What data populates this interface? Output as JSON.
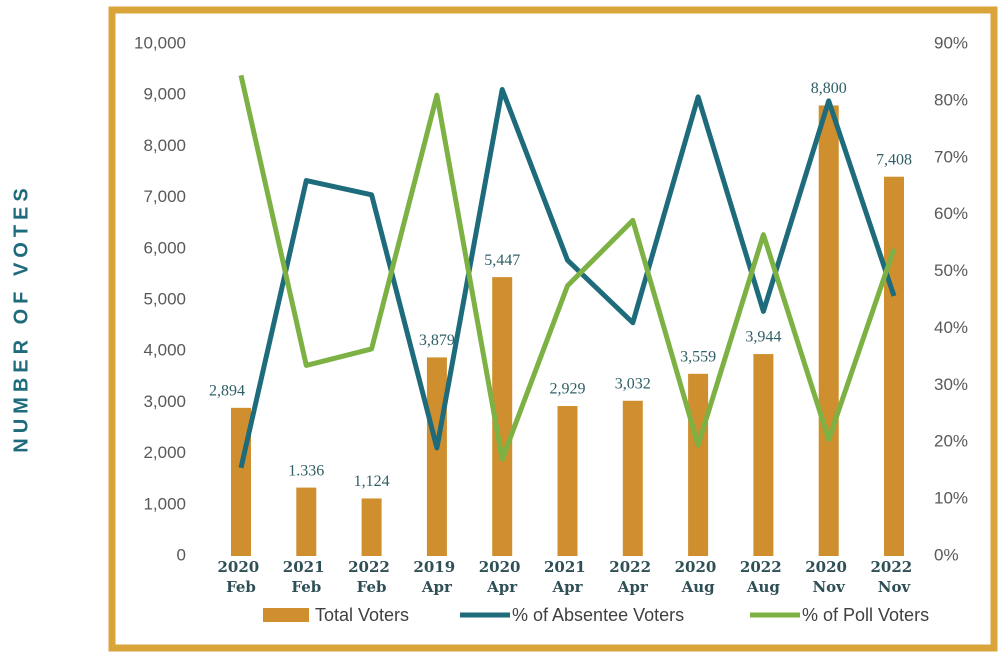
{
  "chart_data": {
    "type": "bar_line",
    "y_axis_label": "NUMBER OF VOTES",
    "categories": [
      "2020 Feb",
      "2021 Feb",
      "2022 Feb",
      "2019 Apr",
      "2020 Apr",
      "2021 Apr",
      "2022 Apr",
      "2020 Aug",
      "2022 Aug",
      "2020 Nov",
      "2022 Nov"
    ],
    "series": [
      {
        "name": "Total Voters",
        "color": "#d08f2f",
        "kind": "bar",
        "values": [
          2894,
          1336,
          1124,
          3879,
          5447,
          2929,
          3032,
          3559,
          3944,
          8800,
          7408
        ],
        "value_labels": [
          "2,894",
          "1.336",
          "1,124",
          "3,879",
          "5,447",
          "2,929",
          "3,032",
          "3,559",
          "3,944",
          "8,800",
          "7,408"
        ]
      },
      {
        "name": "% of Absentee Voters",
        "color": "#1e6b7b",
        "kind": "line",
        "axis": "y2",
        "values": [
          15.5,
          66,
          63.5,
          19,
          82,
          52,
          41,
          80.7,
          43,
          80,
          45.7
        ]
      },
      {
        "name": "% of Poll Voters",
        "color": "#7db143",
        "kind": "line",
        "axis": "y2",
        "values": [
          84.5,
          33.5,
          36.4,
          81,
          17,
          47.5,
          59,
          19.5,
          56.5,
          20.5,
          54
        ]
      }
    ],
    "ylim": [
      0,
      10000
    ],
    "yticks": [
      0,
      {
        "value": 1000,
        "label": "1,000"
      },
      {
        "value": 2000,
        "label": "2,000"
      },
      {
        "value": 3000,
        "label": "3,000"
      },
      {
        "value": 4000,
        "label": "4,000"
      },
      {
        "value": 5000,
        "label": "5,000"
      },
      {
        "value": 6000,
        "label": "6,000"
      },
      {
        "value": 7000,
        "label": "7,000"
      },
      {
        "value": 8000,
        "label": "8,000"
      },
      {
        "value": 9000,
        "label": "9,000"
      },
      {
        "value": 10000,
        "label": "10,000"
      }
    ],
    "y2lim": [
      0,
      90
    ],
    "y2ticks": [
      {
        "value": 0,
        "label": "0%"
      },
      {
        "value": 10,
        "label": "10%"
      },
      {
        "value": 20,
        "label": "20%"
      },
      {
        "value": 30,
        "label": "30%"
      },
      {
        "value": 40,
        "label": "40%"
      },
      {
        "value": 50,
        "label": "50%"
      },
      {
        "value": 60,
        "label": "60%"
      },
      {
        "value": 70,
        "label": "70%"
      },
      {
        "value": 80,
        "label": "80%"
      },
      {
        "value": 90,
        "label": "90%"
      }
    ],
    "legend": "bottom",
    "grid": false
  }
}
